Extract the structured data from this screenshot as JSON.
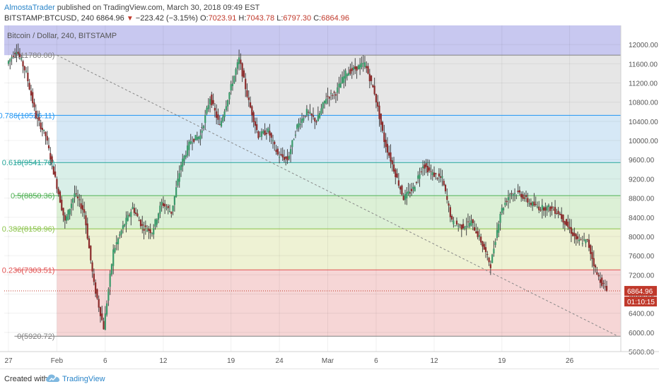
{
  "header": {
    "author": "AlmostaTrader",
    "published_text": "published on TradingView.com, March 30, 2018 09:49 EST",
    "symbol": "BITSTAMP:BTCUSD, 240",
    "last": "6864.96",
    "change": "−223.42 (−3.15%)",
    "o_label": "O:",
    "o_value": "7023.91",
    "h_label": "H:",
    "h_value": "7043.78",
    "l_label": "L:",
    "l_value": "6797.30",
    "c_label": "C:",
    "c_value": "6864.96"
  },
  "chart_data": {
    "type": "candlestick",
    "title": "Bitcoin / Dollar, 240, BITSTAMP",
    "y_range": [
      5600,
      12400
    ],
    "y_ticks": [
      "12000.00",
      "11600.00",
      "11200.00",
      "10800.00",
      "10400.00",
      "10000.00",
      "9600.00",
      "9200.00",
      "8800.00",
      "8400.00",
      "8000.00",
      "7600.00",
      "7200.00",
      "6800.00",
      "6400.00",
      "6000.00",
      "5600.00"
    ],
    "x_range": [
      "2018-01-27",
      "2018-03-31"
    ],
    "x_ticks": [
      {
        "label": "27",
        "date": "2018-01-27"
      },
      {
        "label": "Feb",
        "date": "2018-02-01"
      },
      {
        "label": "6",
        "date": "2018-02-06"
      },
      {
        "label": "12",
        "date": "2018-02-12"
      },
      {
        "label": "19",
        "date": "2018-02-19"
      },
      {
        "label": "24",
        "date": "2018-02-24"
      },
      {
        "label": "Mar",
        "date": "2018-03-01"
      },
      {
        "label": "6",
        "date": "2018-03-06"
      },
      {
        "label": "12",
        "date": "2018-03-12"
      },
      {
        "label": "19",
        "date": "2018-03-19"
      },
      {
        "label": "26",
        "date": "2018-03-26"
      }
    ],
    "fibonacci": {
      "range_start": "2018-02-01",
      "levels": [
        {
          "ratio": "1",
          "price": 11780.0,
          "label": "1(11780.00)",
          "color": "#808080"
        },
        {
          "ratio": "0.786",
          "price": 10526.11,
          "label": "0.786(10526.11)",
          "color": "#2196f3"
        },
        {
          "ratio": "0.618",
          "price": 9541.76,
          "label": "0.618(9541.76)",
          "color": "#26a69a"
        },
        {
          "ratio": "0.5",
          "price": 8850.36,
          "label": "0.5(8850.36)",
          "color": "#4caf50"
        },
        {
          "ratio": "0.382",
          "price": 8158.96,
          "label": "0.382(8158.96)",
          "color": "#8bc34a"
        },
        {
          "ratio": "0.236",
          "price": 7303.51,
          "label": "0.236(7303.51)",
          "color": "#e05050"
        },
        {
          "ratio": "0",
          "price": 5920.72,
          "label": "0(5920.72)",
          "color": "#808080"
        }
      ],
      "zone_colors": [
        "#c8c8f0",
        "#e6e6e6",
        "#d6e8f6",
        "#d9efe8",
        "#dcf0d6",
        "#eef2d4",
        "#f6d6d6"
      ]
    },
    "trend_line": {
      "from": {
        "date": "2018-02-01",
        "price": 11780
      },
      "to": {
        "date": "2018-03-31",
        "price": 5920
      }
    },
    "last_price": {
      "label": "6864.96",
      "price": 6864.96,
      "countdown": "01:10:15"
    },
    "key_points": [
      {
        "date": "2018-01-27",
        "price": 11600
      },
      {
        "date": "2018-01-28",
        "price": 11900
      },
      {
        "date": "2018-01-29",
        "price": 11400
      },
      {
        "date": "2018-01-30",
        "price": 10500
      },
      {
        "date": "2018-01-31",
        "price": 10100
      },
      {
        "date": "2018-02-01",
        "price": 9200
      },
      {
        "date": "2018-02-02",
        "price": 8300
      },
      {
        "date": "2018-02-03",
        "price": 8900
      },
      {
        "date": "2018-02-04",
        "price": 8500
      },
      {
        "date": "2018-02-05",
        "price": 7000
      },
      {
        "date": "2018-02-06",
        "price": 6100
      },
      {
        "date": "2018-02-07",
        "price": 7700
      },
      {
        "date": "2018-02-08",
        "price": 8200
      },
      {
        "date": "2018-02-09",
        "price": 8600
      },
      {
        "date": "2018-02-10",
        "price": 8200
      },
      {
        "date": "2018-02-11",
        "price": 8100
      },
      {
        "date": "2018-02-12",
        "price": 8700
      },
      {
        "date": "2018-02-13",
        "price": 8500
      },
      {
        "date": "2018-02-14",
        "price": 9500
      },
      {
        "date": "2018-02-15",
        "price": 10000
      },
      {
        "date": "2018-02-16",
        "price": 10100
      },
      {
        "date": "2018-02-17",
        "price": 10900
      },
      {
        "date": "2018-02-18",
        "price": 10300
      },
      {
        "date": "2018-02-19",
        "price": 11000
      },
      {
        "date": "2018-02-20",
        "price": 11700
      },
      {
        "date": "2018-02-21",
        "price": 10800
      },
      {
        "date": "2018-02-22",
        "price": 10100
      },
      {
        "date": "2018-02-23",
        "price": 10200
      },
      {
        "date": "2018-02-24",
        "price": 9700
      },
      {
        "date": "2018-02-25",
        "price": 9600
      },
      {
        "date": "2018-02-26",
        "price": 10300
      },
      {
        "date": "2018-02-27",
        "price": 10600
      },
      {
        "date": "2018-02-28",
        "price": 10400
      },
      {
        "date": "2018-03-01",
        "price": 10900
      },
      {
        "date": "2018-03-02",
        "price": 11000
      },
      {
        "date": "2018-03-03",
        "price": 11400
      },
      {
        "date": "2018-03-04",
        "price": 11500
      },
      {
        "date": "2018-03-05",
        "price": 11600
      },
      {
        "date": "2018-03-06",
        "price": 11000
      },
      {
        "date": "2018-03-07",
        "price": 10000
      },
      {
        "date": "2018-03-08",
        "price": 9400
      },
      {
        "date": "2018-03-09",
        "price": 8800
      },
      {
        "date": "2018-03-10",
        "price": 9000
      },
      {
        "date": "2018-03-11",
        "price": 9500
      },
      {
        "date": "2018-03-12",
        "price": 9300
      },
      {
        "date": "2018-03-13",
        "price": 9200
      },
      {
        "date": "2018-03-14",
        "price": 8300
      },
      {
        "date": "2018-03-15",
        "price": 8200
      },
      {
        "date": "2018-03-16",
        "price": 8300
      },
      {
        "date": "2018-03-17",
        "price": 7900
      },
      {
        "date": "2018-03-18",
        "price": 7400
      },
      {
        "date": "2018-03-19",
        "price": 8500
      },
      {
        "date": "2018-03-20",
        "price": 8900
      },
      {
        "date": "2018-03-21",
        "price": 8900
      },
      {
        "date": "2018-03-22",
        "price": 8700
      },
      {
        "date": "2018-03-23",
        "price": 8600
      },
      {
        "date": "2018-03-24",
        "price": 8600
      },
      {
        "date": "2018-03-25",
        "price": 8500
      },
      {
        "date": "2018-03-26",
        "price": 8200
      },
      {
        "date": "2018-03-27",
        "price": 7900
      },
      {
        "date": "2018-03-28",
        "price": 7900
      },
      {
        "date": "2018-03-29",
        "price": 7200
      },
      {
        "date": "2018-03-30",
        "price": 6865
      }
    ],
    "colors": {
      "up": "#3a9a6a",
      "down": "#8b2b2b",
      "wick": "#444444",
      "price_label_bg": "#c0392b"
    }
  },
  "footer": {
    "created_with": "Created with",
    "brand": "TradingView"
  }
}
